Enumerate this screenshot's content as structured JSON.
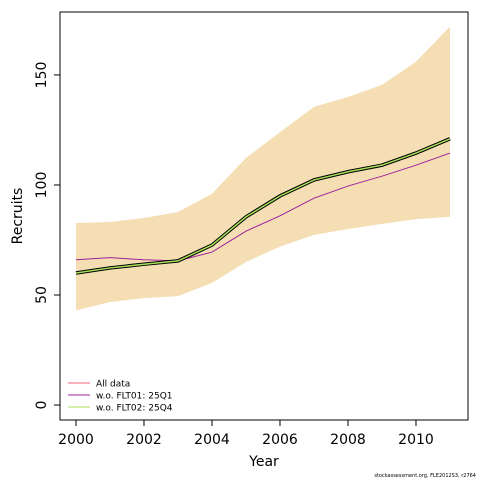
{
  "chart_data": {
    "type": "line",
    "x_label": "Year",
    "y_label": "Recruits",
    "x": [
      2000,
      2001,
      2002,
      2003,
      2004,
      2005,
      2006,
      2007,
      2008,
      2009,
      2010,
      2011
    ],
    "band": {
      "color": "#f5deb3",
      "upper": [
        82.7,
        83.2,
        85,
        87.7,
        96,
        112.3,
        124,
        135.5,
        140,
        145.5,
        156,
        172
      ],
      "lower": [
        43,
        46.8,
        48.6,
        49.5,
        55.5,
        65,
        72,
        77.3,
        80,
        82.3,
        84.5,
        85.5
      ]
    },
    "series": [
      {
        "name": "All data",
        "color": "#f0607a",
        "values": [
          60,
          62.3,
          64,
          65.5,
          72.7,
          85.5,
          95,
          102.3,
          106,
          109,
          114.5,
          121
        ]
      },
      {
        "name": "w.o. FLT01: 25Q1",
        "color": "#a020a0",
        "values": [
          66,
          67,
          66,
          65.5,
          69.5,
          79,
          86,
          94,
          99.5,
          104,
          109,
          114.5
        ]
      },
      {
        "name": "w.o. FLT02: 25Q4",
        "color": "#a8e05a",
        "values": [
          60,
          62.3,
          64,
          65.5,
          72.7,
          85.5,
          95,
          102.3,
          106,
          109,
          114.5,
          121
        ]
      }
    ],
    "xlim": [
      1999.53,
      2011.53
    ],
    "ylim": [
      -6.8,
      178.6
    ],
    "xticks": [
      2000,
      2002,
      2004,
      2006,
      2008,
      2010
    ],
    "yticks": [
      0,
      50,
      100,
      150
    ],
    "legend": "bottom-left",
    "footnote": "stockassessment.org, FLE2012S3, r2764"
  }
}
